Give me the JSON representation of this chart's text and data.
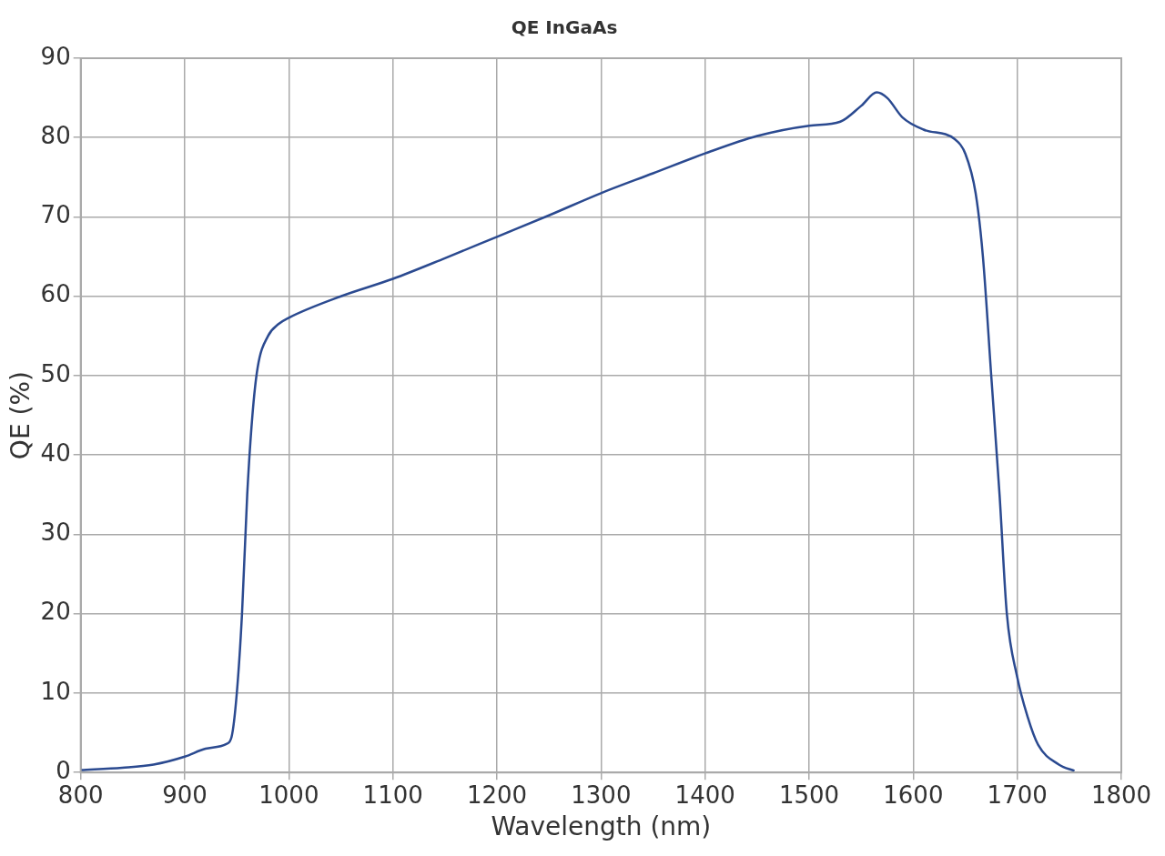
{
  "chart_data": {
    "type": "line",
    "title": "QE InGaAs",
    "xlabel": "Wavelength (nm)",
    "ylabel": "QE (%)",
    "x": [
      800,
      840,
      870,
      900,
      920,
      940,
      945,
      950,
      955,
      960,
      965,
      970,
      980,
      990,
      1000,
      1050,
      1100,
      1150,
      1200,
      1250,
      1300,
      1350,
      1400,
      1450,
      1500,
      1530,
      1550,
      1565,
      1575,
      1590,
      1610,
      1640,
      1650,
      1660,
      1667,
      1675,
      1683,
      1690,
      1700,
      1710,
      1720,
      1740,
      1755
    ],
    "series": [
      {
        "color": "#2b4a90",
        "values": [
          0.3,
          0.6,
          1.0,
          2.0,
          3.0,
          3.6,
          4.5,
          10,
          20,
          35,
          45,
          51,
          55,
          56.5,
          57.3,
          60,
          62.2,
          64.8,
          67.5,
          70.2,
          73,
          75.5,
          78,
          80.2,
          81.5,
          82,
          84,
          85.7,
          85,
          82.5,
          81,
          79.8,
          78,
          73,
          65,
          50,
          35,
          20,
          12,
          7,
          3.5,
          1,
          0.2
        ]
      }
    ],
    "xlim": [
      800,
      1800
    ],
    "xticks": [
      800,
      900,
      1000,
      1100,
      1200,
      1300,
      1400,
      1500,
      1600,
      1700,
      1800
    ],
    "ylim": [
      0,
      90
    ],
    "yticks": [
      0,
      10,
      20,
      30,
      40,
      50,
      60,
      70,
      80,
      90
    ],
    "grid": true,
    "legend": false,
    "marker": "none",
    "line_style": "solid"
  }
}
